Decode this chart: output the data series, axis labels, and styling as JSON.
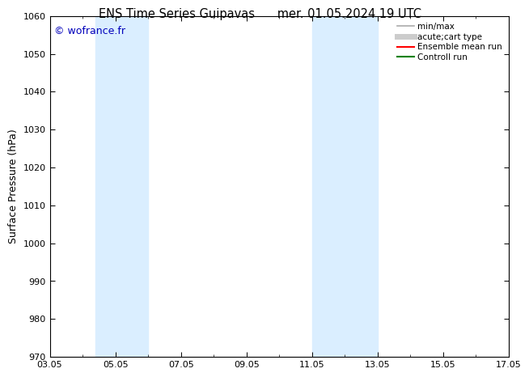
{
  "title_left": "ENS Time Series Guipavas",
  "title_right": "mer. 01.05.2024 19 UTC",
  "ylabel": "Surface Pressure (hPa)",
  "ylim": [
    970,
    1060
  ],
  "yticks": [
    970,
    980,
    990,
    1000,
    1010,
    1020,
    1030,
    1040,
    1050,
    1060
  ],
  "xlim": [
    0,
    14
  ],
  "xtick_positions": [
    0,
    2,
    4,
    6,
    8,
    10,
    12,
    14
  ],
  "xtick_labels": [
    "03.05",
    "05.05",
    "07.05",
    "09.05",
    "11.05",
    "13.05",
    "15.05",
    "17.05"
  ],
  "watermark": "© wofrance.fr",
  "watermark_color": "#0000bb",
  "shaded_bands": [
    {
      "xmin": 1.4,
      "xmax": 3.0
    },
    {
      "xmin": 8.0,
      "xmax": 10.0
    }
  ],
  "band_color": "#daeeff",
  "background_color": "#ffffff",
  "legend_entries": [
    {
      "label": "min/max",
      "color": "#aaaaaa",
      "lw": 1.2
    },
    {
      "label": "acute;cart type",
      "color": "#cccccc",
      "lw": 5
    },
    {
      "label": "Ensemble mean run",
      "color": "#ff0000",
      "lw": 1.5
    },
    {
      "label": "Controll run",
      "color": "#008000",
      "lw": 1.5
    }
  ],
  "title_fontsize": 10.5,
  "ylabel_fontsize": 9,
  "tick_fontsize": 8,
  "watermark_fontsize": 9
}
